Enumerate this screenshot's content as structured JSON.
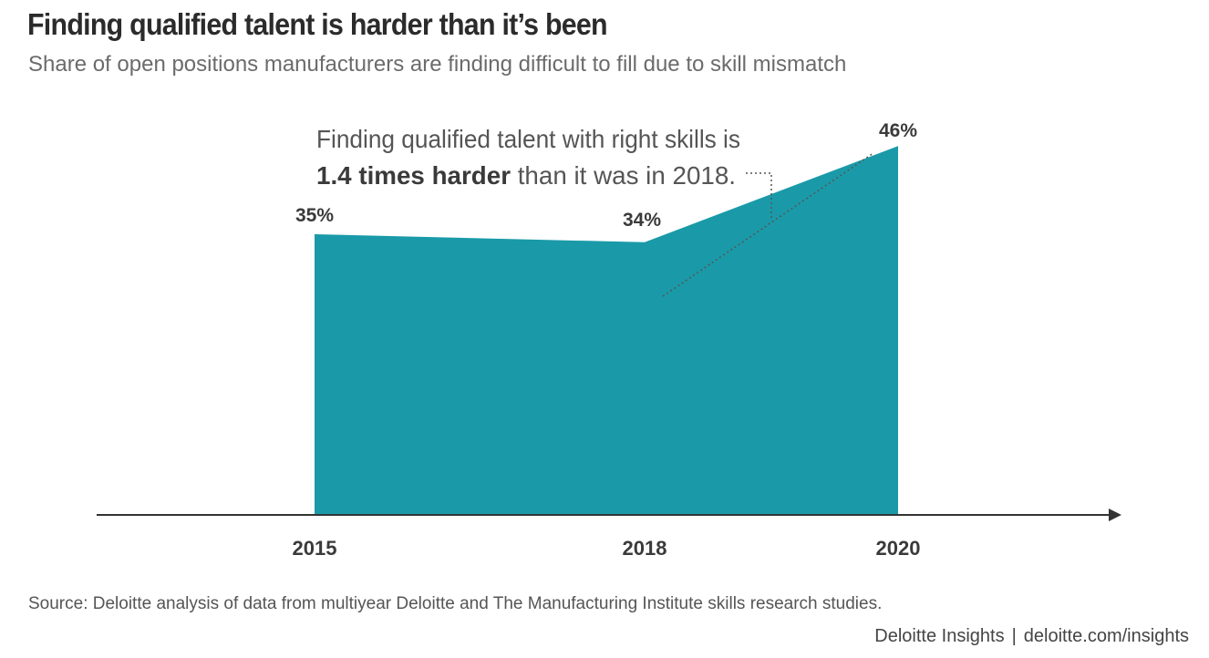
{
  "header": {
    "title": "Finding qualified talent is harder than it’s been",
    "subtitle": "Share of open positions manufacturers are finding difficult to fill due to skill mismatch"
  },
  "chart_data": {
    "type": "area",
    "title": "Finding qualified talent is harder than it’s been",
    "subtitle": "Share of open positions manufacturers are finding difficult to fill due to skill mismatch",
    "x": [
      "2015",
      "2018",
      "2020"
    ],
    "values": [
      35,
      34,
      46
    ],
    "value_labels": [
      "35%",
      "34%",
      "46%"
    ],
    "unit": "%",
    "ylim": [
      0,
      50
    ],
    "grid": false,
    "legend": "none",
    "fill_color": "#1a9aa8",
    "annotation": {
      "line1": "Finding qualified talent with right skills is",
      "bold": "1.4 times harder",
      "rest": " than it was in 2018."
    }
  },
  "footer": {
    "source": "Source: Deloitte analysis of data from multiyear Deloitte and The Manufacturing Institute skills research studies.",
    "brand": "Deloitte Insights",
    "separator": "|",
    "url": "deloitte.com/insights"
  },
  "colors": {
    "area": "#1a9aa8",
    "axis": "#333333",
    "text": "#333333",
    "muted": "#6b6b6b"
  }
}
